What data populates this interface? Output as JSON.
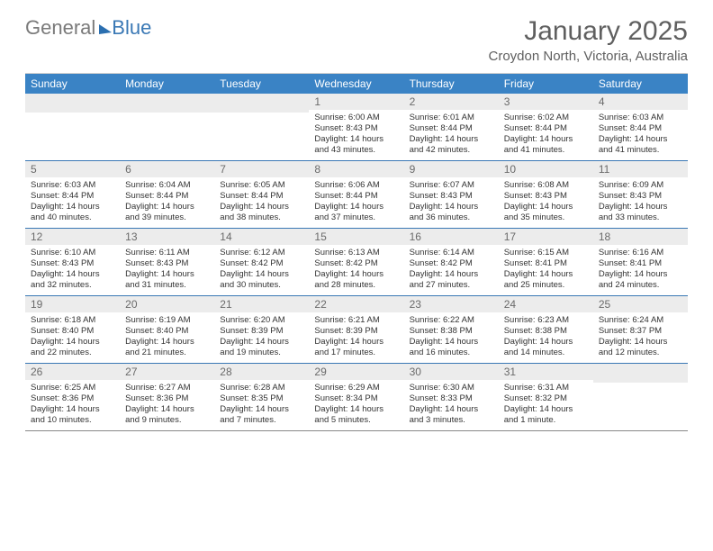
{
  "logo": {
    "part1": "General",
    "part2": "Blue"
  },
  "title": "January 2025",
  "location": "Croydon North, Victoria, Australia",
  "colors": {
    "header_bg": "#3a83c5",
    "header_text": "#ffffff",
    "daybar_bg": "#ececec",
    "daybar_text": "#6a6a6a",
    "week_border": "#3a78b5",
    "body_text": "#333333",
    "title_text": "#5f5f5f"
  },
  "days_of_week": [
    "Sunday",
    "Monday",
    "Tuesday",
    "Wednesday",
    "Thursday",
    "Friday",
    "Saturday"
  ],
  "weeks": [
    [
      {
        "blank": true
      },
      {
        "blank": true
      },
      {
        "blank": true
      },
      {
        "n": "1",
        "sunrise": "Sunrise: 6:00 AM",
        "sunset": "Sunset: 8:43 PM",
        "dl": "Daylight: 14 hours and 43 minutes."
      },
      {
        "n": "2",
        "sunrise": "Sunrise: 6:01 AM",
        "sunset": "Sunset: 8:44 PM",
        "dl": "Daylight: 14 hours and 42 minutes."
      },
      {
        "n": "3",
        "sunrise": "Sunrise: 6:02 AM",
        "sunset": "Sunset: 8:44 PM",
        "dl": "Daylight: 14 hours and 41 minutes."
      },
      {
        "n": "4",
        "sunrise": "Sunrise: 6:03 AM",
        "sunset": "Sunset: 8:44 PM",
        "dl": "Daylight: 14 hours and 41 minutes."
      }
    ],
    [
      {
        "n": "5",
        "sunrise": "Sunrise: 6:03 AM",
        "sunset": "Sunset: 8:44 PM",
        "dl": "Daylight: 14 hours and 40 minutes."
      },
      {
        "n": "6",
        "sunrise": "Sunrise: 6:04 AM",
        "sunset": "Sunset: 8:44 PM",
        "dl": "Daylight: 14 hours and 39 minutes."
      },
      {
        "n": "7",
        "sunrise": "Sunrise: 6:05 AM",
        "sunset": "Sunset: 8:44 PM",
        "dl": "Daylight: 14 hours and 38 minutes."
      },
      {
        "n": "8",
        "sunrise": "Sunrise: 6:06 AM",
        "sunset": "Sunset: 8:44 PM",
        "dl": "Daylight: 14 hours and 37 minutes."
      },
      {
        "n": "9",
        "sunrise": "Sunrise: 6:07 AM",
        "sunset": "Sunset: 8:43 PM",
        "dl": "Daylight: 14 hours and 36 minutes."
      },
      {
        "n": "10",
        "sunrise": "Sunrise: 6:08 AM",
        "sunset": "Sunset: 8:43 PM",
        "dl": "Daylight: 14 hours and 35 minutes."
      },
      {
        "n": "11",
        "sunrise": "Sunrise: 6:09 AM",
        "sunset": "Sunset: 8:43 PM",
        "dl": "Daylight: 14 hours and 33 minutes."
      }
    ],
    [
      {
        "n": "12",
        "sunrise": "Sunrise: 6:10 AM",
        "sunset": "Sunset: 8:43 PM",
        "dl": "Daylight: 14 hours and 32 minutes."
      },
      {
        "n": "13",
        "sunrise": "Sunrise: 6:11 AM",
        "sunset": "Sunset: 8:43 PM",
        "dl": "Daylight: 14 hours and 31 minutes."
      },
      {
        "n": "14",
        "sunrise": "Sunrise: 6:12 AM",
        "sunset": "Sunset: 8:42 PM",
        "dl": "Daylight: 14 hours and 30 minutes."
      },
      {
        "n": "15",
        "sunrise": "Sunrise: 6:13 AM",
        "sunset": "Sunset: 8:42 PM",
        "dl": "Daylight: 14 hours and 28 minutes."
      },
      {
        "n": "16",
        "sunrise": "Sunrise: 6:14 AM",
        "sunset": "Sunset: 8:42 PM",
        "dl": "Daylight: 14 hours and 27 minutes."
      },
      {
        "n": "17",
        "sunrise": "Sunrise: 6:15 AM",
        "sunset": "Sunset: 8:41 PM",
        "dl": "Daylight: 14 hours and 25 minutes."
      },
      {
        "n": "18",
        "sunrise": "Sunrise: 6:16 AM",
        "sunset": "Sunset: 8:41 PM",
        "dl": "Daylight: 14 hours and 24 minutes."
      }
    ],
    [
      {
        "n": "19",
        "sunrise": "Sunrise: 6:18 AM",
        "sunset": "Sunset: 8:40 PM",
        "dl": "Daylight: 14 hours and 22 minutes."
      },
      {
        "n": "20",
        "sunrise": "Sunrise: 6:19 AM",
        "sunset": "Sunset: 8:40 PM",
        "dl": "Daylight: 14 hours and 21 minutes."
      },
      {
        "n": "21",
        "sunrise": "Sunrise: 6:20 AM",
        "sunset": "Sunset: 8:39 PM",
        "dl": "Daylight: 14 hours and 19 minutes."
      },
      {
        "n": "22",
        "sunrise": "Sunrise: 6:21 AM",
        "sunset": "Sunset: 8:39 PM",
        "dl": "Daylight: 14 hours and 17 minutes."
      },
      {
        "n": "23",
        "sunrise": "Sunrise: 6:22 AM",
        "sunset": "Sunset: 8:38 PM",
        "dl": "Daylight: 14 hours and 16 minutes."
      },
      {
        "n": "24",
        "sunrise": "Sunrise: 6:23 AM",
        "sunset": "Sunset: 8:38 PM",
        "dl": "Daylight: 14 hours and 14 minutes."
      },
      {
        "n": "25",
        "sunrise": "Sunrise: 6:24 AM",
        "sunset": "Sunset: 8:37 PM",
        "dl": "Daylight: 14 hours and 12 minutes."
      }
    ],
    [
      {
        "n": "26",
        "sunrise": "Sunrise: 6:25 AM",
        "sunset": "Sunset: 8:36 PM",
        "dl": "Daylight: 14 hours and 10 minutes."
      },
      {
        "n": "27",
        "sunrise": "Sunrise: 6:27 AM",
        "sunset": "Sunset: 8:36 PM",
        "dl": "Daylight: 14 hours and 9 minutes."
      },
      {
        "n": "28",
        "sunrise": "Sunrise: 6:28 AM",
        "sunset": "Sunset: 8:35 PM",
        "dl": "Daylight: 14 hours and 7 minutes."
      },
      {
        "n": "29",
        "sunrise": "Sunrise: 6:29 AM",
        "sunset": "Sunset: 8:34 PM",
        "dl": "Daylight: 14 hours and 5 minutes."
      },
      {
        "n": "30",
        "sunrise": "Sunrise: 6:30 AM",
        "sunset": "Sunset: 8:33 PM",
        "dl": "Daylight: 14 hours and 3 minutes."
      },
      {
        "n": "31",
        "sunrise": "Sunrise: 6:31 AM",
        "sunset": "Sunset: 8:32 PM",
        "dl": "Daylight: 14 hours and 1 minute."
      },
      {
        "blank": true
      }
    ]
  ]
}
